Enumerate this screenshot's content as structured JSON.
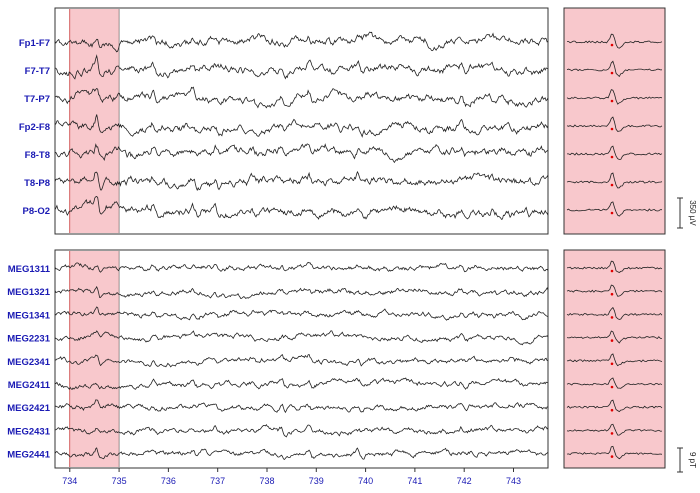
{
  "chart_data": [
    {
      "type": "line",
      "panel": "EEG",
      "x_unit": "s",
      "xlim": [
        733.7,
        743.7
      ],
      "channels": [
        "Fp1-F7",
        "F7-T7",
        "T7-P7",
        "Fp2-F8",
        "F8-T8",
        "T8-P8",
        "P8-O2"
      ],
      "highlight_interval": [
        734.0,
        735.0
      ],
      "scale_bar_label": "350 µV",
      "spike_marker_color": "#e00000",
      "highlight_color": "#f8c8cc",
      "trace_color": "#222222",
      "label_color": "#1a1ab4"
    },
    {
      "type": "line",
      "panel": "MEG",
      "x_unit": "s",
      "xlim": [
        733.7,
        743.7
      ],
      "channels": [
        "MEG1311",
        "MEG1321",
        "MEG1341",
        "MEG2231",
        "MEG2341",
        "MEG2411",
        "MEG2421",
        "MEG2431",
        "MEG2441"
      ],
      "highlight_interval": [
        734.0,
        735.0
      ],
      "scale_bar_label": "9 pT",
      "xticks": [
        734,
        735,
        736,
        737,
        738,
        739,
        740,
        741,
        742,
        743
      ],
      "xtick_labels": [
        "734",
        "735",
        "736",
        "737",
        "738",
        "739",
        "740",
        "741",
        "742",
        "743"
      ]
    }
  ]
}
